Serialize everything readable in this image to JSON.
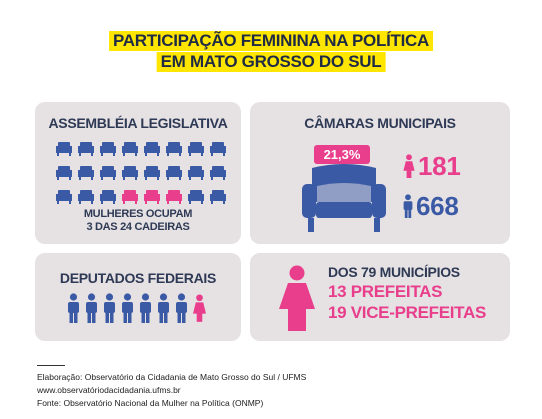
{
  "title": {
    "line1": "PARTICIPAÇÃO FEMININA NA POLÍTICA",
    "line2": "EM  MATO GROSSO DO SUL"
  },
  "assembly": {
    "title": "ASSEMBLÉIA LEGISLATIVA",
    "caption_line1": "MULHERES OCUPAM",
    "caption_line2": "3 DAS 24 CADEIRAS",
    "total_seats": 24,
    "women_seats": 3
  },
  "camaras": {
    "title": "CÂMARAS MUNICIPAIS",
    "percent": "21,3%",
    "women": "181",
    "men": "668"
  },
  "deputados": {
    "title": "DEPUTADOS FEDERAIS",
    "men_count": 7,
    "women_count": 1
  },
  "municipios": {
    "line1": "DOS 79 MUNICÍPIOS",
    "line2": "13 PREFEITAS",
    "line3": "19 VICE-PREFEITAS"
  },
  "footer": {
    "line1": "Elaboração: Observatório da Cidadania de Mato Grosso do Sul / UFMS",
    "line2": "www.observatóriodacidadania.ufms.br",
    "line3": "Fonte: Observatório Nacional da Mulher na Política (ONMP)"
  },
  "colors": {
    "pink": "#e83e8c",
    "blue": "#3b5aa6",
    "card": "#e6e1e3",
    "title_bg": "#ffe600",
    "dark_text": "#2e3a55"
  }
}
